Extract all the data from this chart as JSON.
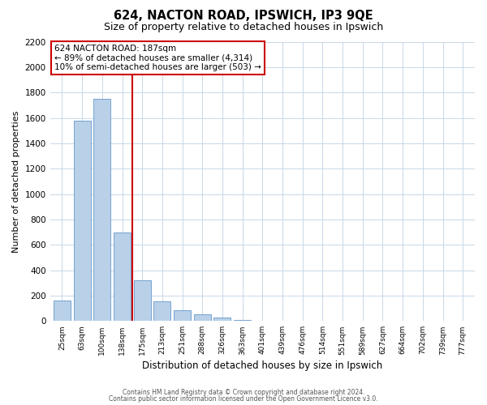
{
  "title": "624, NACTON ROAD, IPSWICH, IP3 9QE",
  "subtitle": "Size of property relative to detached houses in Ipswich",
  "xlabel": "Distribution of detached houses by size in Ipswich",
  "ylabel": "Number of detached properties",
  "categories": [
    "25sqm",
    "63sqm",
    "100sqm",
    "138sqm",
    "175sqm",
    "213sqm",
    "251sqm",
    "288sqm",
    "326sqm",
    "363sqm",
    "401sqm",
    "439sqm",
    "476sqm",
    "514sqm",
    "551sqm",
    "589sqm",
    "627sqm",
    "664sqm",
    "702sqm",
    "739sqm",
    "777sqm"
  ],
  "values": [
    160,
    1580,
    1750,
    700,
    320,
    155,
    85,
    50,
    25,
    10,
    0,
    0,
    0,
    0,
    0,
    0,
    0,
    0,
    0,
    0,
    0
  ],
  "bar_color": "#b8d0e8",
  "bar_edge_color": "#6699cc",
  "vline_color": "#cc0000",
  "vline_x_index": 4,
  "ylim": [
    0,
    2200
  ],
  "yticks": [
    0,
    200,
    400,
    600,
    800,
    1000,
    1200,
    1400,
    1600,
    1800,
    2000,
    2200
  ],
  "annotation_line1": "624 NACTON ROAD: 187sqm",
  "annotation_line2": "← 89% of detached houses are smaller (4,314)",
  "annotation_line3": "10% of semi-detached houses are larger (503) →",
  "annotation_box_color": "#ffffff",
  "annotation_box_edge_color": "#cc0000",
  "footnote1": "Contains HM Land Registry data © Crown copyright and database right 2024.",
  "footnote2": "Contains public sector information licensed under the Open Government Licence v3.0.",
  "background_color": "#ffffff",
  "grid_color": "#c8d8e8"
}
